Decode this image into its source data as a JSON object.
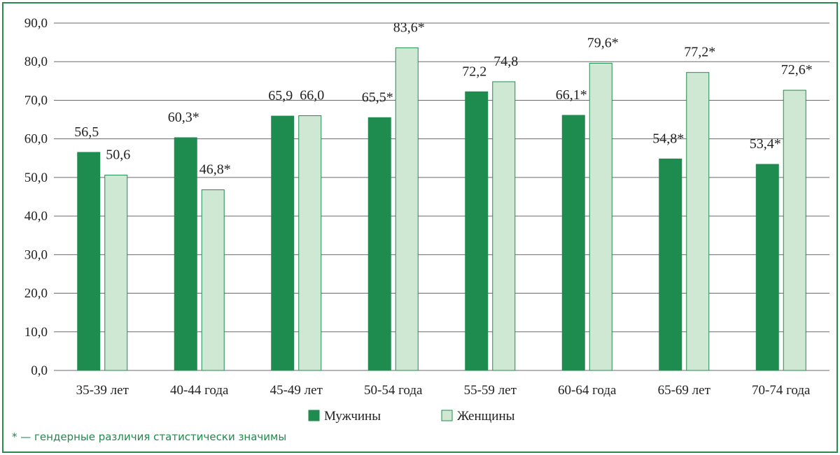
{
  "chart_data": {
    "type": "bar",
    "categories": [
      "35-39 лет",
      "40-44 года",
      "45-49 лет",
      "50-54 года",
      "55-59 лет",
      "60-64 года",
      "65-69 лет",
      "70-74 года"
    ],
    "series": [
      {
        "name": "Мужчины",
        "color": "#1e8c4e",
        "values": [
          56.5,
          60.3,
          65.9,
          65.5,
          72.2,
          66.1,
          54.8,
          53.4
        ],
        "labels": [
          "56,5",
          "60,3*",
          "65,9",
          "65,5*",
          "72,2",
          "66,1*",
          "54,8*",
          "53,4*"
        ]
      },
      {
        "name": "Женщины",
        "color": "#cfe8d4",
        "values": [
          50.6,
          46.8,
          66.0,
          83.6,
          74.8,
          79.6,
          77.2,
          72.6
        ],
        "labels": [
          "50,6",
          "46,8*",
          "66,0",
          "83,6*",
          "74,8",
          "79,6*",
          "77,2*",
          "72,6*"
        ]
      }
    ],
    "ylim": [
      0,
      90
    ],
    "yticks": [
      0,
      10,
      20,
      30,
      40,
      50,
      60,
      70,
      80,
      90
    ],
    "ytick_labels": [
      "0,0",
      "10,0",
      "20,0",
      "30,0",
      "40,0",
      "50,0",
      "60,0",
      "70,0",
      "80,0",
      "90,0"
    ],
    "grid": true,
    "legend_position": "bottom-center",
    "frame_color": "#2a8a4e"
  },
  "footnote": "* — гендерные различия статистически значимы"
}
